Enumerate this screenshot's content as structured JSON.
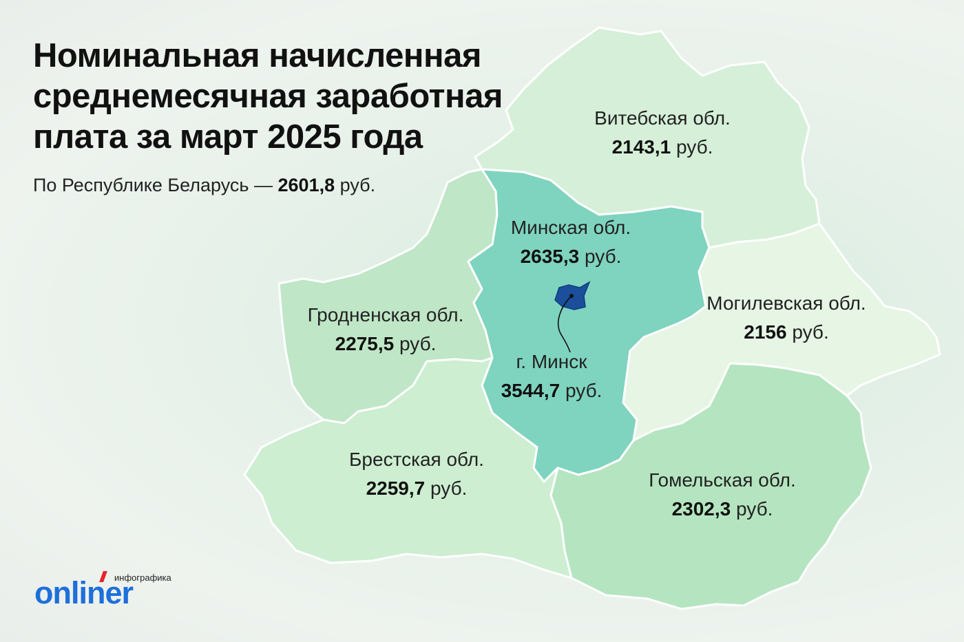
{
  "title": "Номинальная начисленная среднемесячная заработная плата за март 2025 года",
  "subtitle": {
    "prefix": "По Республике Беларусь —",
    "value": "2601,8",
    "unit": "руб."
  },
  "regions": [
    {
      "id": "vitebsk",
      "name": "Витебская обл.",
      "value": "2143,1",
      "unit": "руб.",
      "color": "#d6efd8"
    },
    {
      "id": "minsk-region",
      "name": "Минская обл.",
      "value": "2635,3",
      "unit": "руб.",
      "color": "#7fd4bf"
    },
    {
      "id": "minsk-city",
      "name": "г. Минск",
      "value": "3544,7",
      "unit": "руб.",
      "color": "#1b4f9b"
    },
    {
      "id": "grodno",
      "name": "Гродненская обл.",
      "value": "2275,5",
      "unit": "руб.",
      "color": "#bfe6c6"
    },
    {
      "id": "mogilev",
      "name": "Могилевская обл.",
      "value": "2156",
      "unit": "руб.",
      "color": "#e6f5e4"
    },
    {
      "id": "brest",
      "name": "Брестская обл.",
      "value": "2259,7",
      "unit": "руб.",
      "color": "#cdeed1"
    },
    {
      "id": "gomel",
      "name": "Гомельская обл.",
      "value": "2302,3",
      "unit": "руб.",
      "color": "#b5e5c0"
    }
  ],
  "logo": {
    "word": "onliner",
    "caption": "инфографика",
    "color": "#1e6fd9",
    "accent": "#e8232e"
  }
}
